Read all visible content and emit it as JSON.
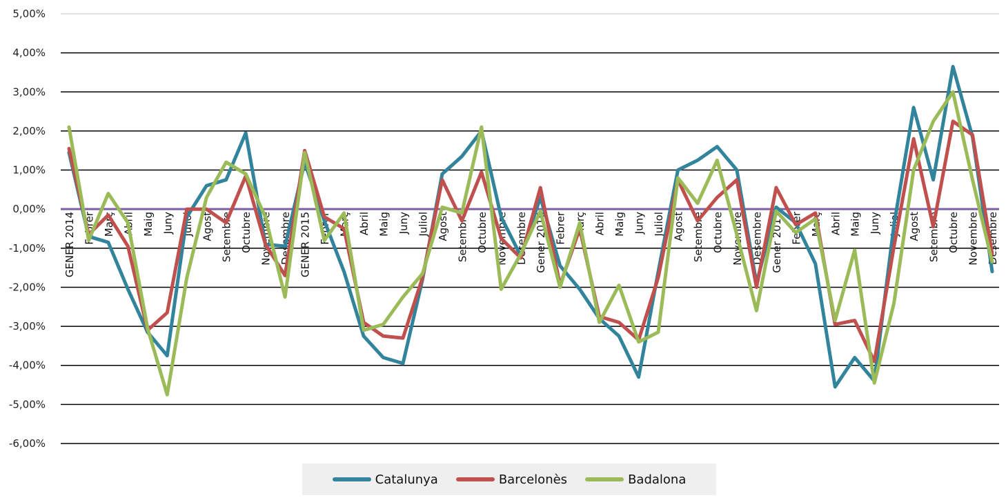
{
  "chart_data": {
    "type": "line",
    "title": "",
    "xlabel": "",
    "ylabel": "",
    "ylim": [
      -6,
      5
    ],
    "y_ticks": [
      "5,00%",
      "4,00%",
      "3,00%",
      "2,00%",
      "1,00%",
      "0,00%",
      "-1,00%",
      "-2,00%",
      "-3,00%",
      "-4,00%",
      "-5,00%",
      "-6,00%"
    ],
    "grid": true,
    "legend_position": "bottom",
    "categories": [
      "GENER 2014",
      "Febrer",
      "Març",
      "Abril",
      "Maig",
      "Juny",
      "Juliol",
      "Agost",
      "Setembre",
      "Octubre",
      "Novembre",
      "Desembre",
      "GENER 2015",
      "Febrer",
      "Març",
      "Abril",
      "Maig",
      "Juny",
      "Juliol",
      "Agost",
      "Setembre",
      "Octubre",
      "Novembre",
      "Desembre",
      "Gener 2016",
      "Febrer",
      "Març",
      "Abril",
      "Maig",
      "Juny",
      "Juliol",
      "Agost",
      "Setembre",
      "Octubre",
      "Novembre",
      "Desembre",
      "Gener 2017",
      "Febrer",
      "Març",
      "Abril",
      "Maig",
      "Juny",
      "Juliol",
      "Agost",
      "Setembre",
      "Octubre",
      "Novembre",
      "Desembre"
    ],
    "series": [
      {
        "name": "Catalunya",
        "color": "#31849b",
        "values": [
          1.45,
          -0.7,
          -0.85,
          -2.05,
          -3.15,
          -3.75,
          -0.2,
          0.6,
          0.75,
          1.95,
          -0.9,
          -0.95,
          1.2,
          -0.3,
          -1.6,
          -3.25,
          -3.8,
          -3.95,
          -1.8,
          0.9,
          1.35,
          2.0,
          -0.2,
          -1.2,
          0.3,
          -1.45,
          -2.05,
          -2.8,
          -3.25,
          -4.3,
          -1.6,
          1.0,
          1.25,
          1.6,
          1.0,
          -1.9,
          0.05,
          -0.35,
          -1.4,
          -4.55,
          -3.8,
          -4.4,
          -0.4,
          2.6,
          0.75,
          3.65,
          1.85,
          -1.6
        ]
      },
      {
        "name": "Barcelonès",
        "color": "#c0504d",
        "values": [
          1.55,
          -0.65,
          -0.15,
          -0.95,
          -3.1,
          -2.65,
          0.0,
          0.0,
          -0.35,
          0.85,
          -0.9,
          -1.7,
          1.5,
          -0.2,
          -0.5,
          -2.9,
          -3.25,
          -3.3,
          -1.75,
          0.75,
          -0.3,
          0.95,
          -0.75,
          -1.25,
          0.55,
          -1.95,
          -0.5,
          -2.75,
          -2.9,
          -3.35,
          -1.75,
          0.75,
          -0.3,
          0.3,
          0.75,
          -2.0,
          0.55,
          -0.4,
          -0.1,
          -2.95,
          -2.85,
          -3.9,
          -0.95,
          1.8,
          -0.45,
          2.25,
          1.9,
          -1.15
        ]
      },
      {
        "name": "Badalona",
        "color": "#9bbb59",
        "values": [
          2.1,
          -0.8,
          0.4,
          -0.35,
          -3.05,
          -4.75,
          -1.75,
          0.3,
          1.2,
          0.9,
          -0.2,
          -2.25,
          1.45,
          -0.8,
          -0.1,
          -3.1,
          -2.95,
          -2.25,
          -1.65,
          0.05,
          -0.1,
          2.1,
          -2.05,
          -1.15,
          -0.05,
          -2.0,
          -0.35,
          -2.9,
          -1.95,
          -3.4,
          -3.15,
          0.8,
          0.15,
          1.25,
          -0.65,
          -2.6,
          -0.05,
          -0.6,
          -0.25,
          -2.85,
          -1.05,
          -4.45,
          -2.4,
          1.0,
          2.25,
          3.0,
          0.75,
          -1.35
        ]
      }
    ]
  },
  "baseline_color": "#7b5ea7",
  "legend": {
    "items": [
      {
        "label": "Catalunya",
        "color": "#31849b"
      },
      {
        "label": "Barcelonès",
        "color": "#c0504d"
      },
      {
        "label": "Badalona",
        "color": "#9bbb59"
      }
    ]
  }
}
